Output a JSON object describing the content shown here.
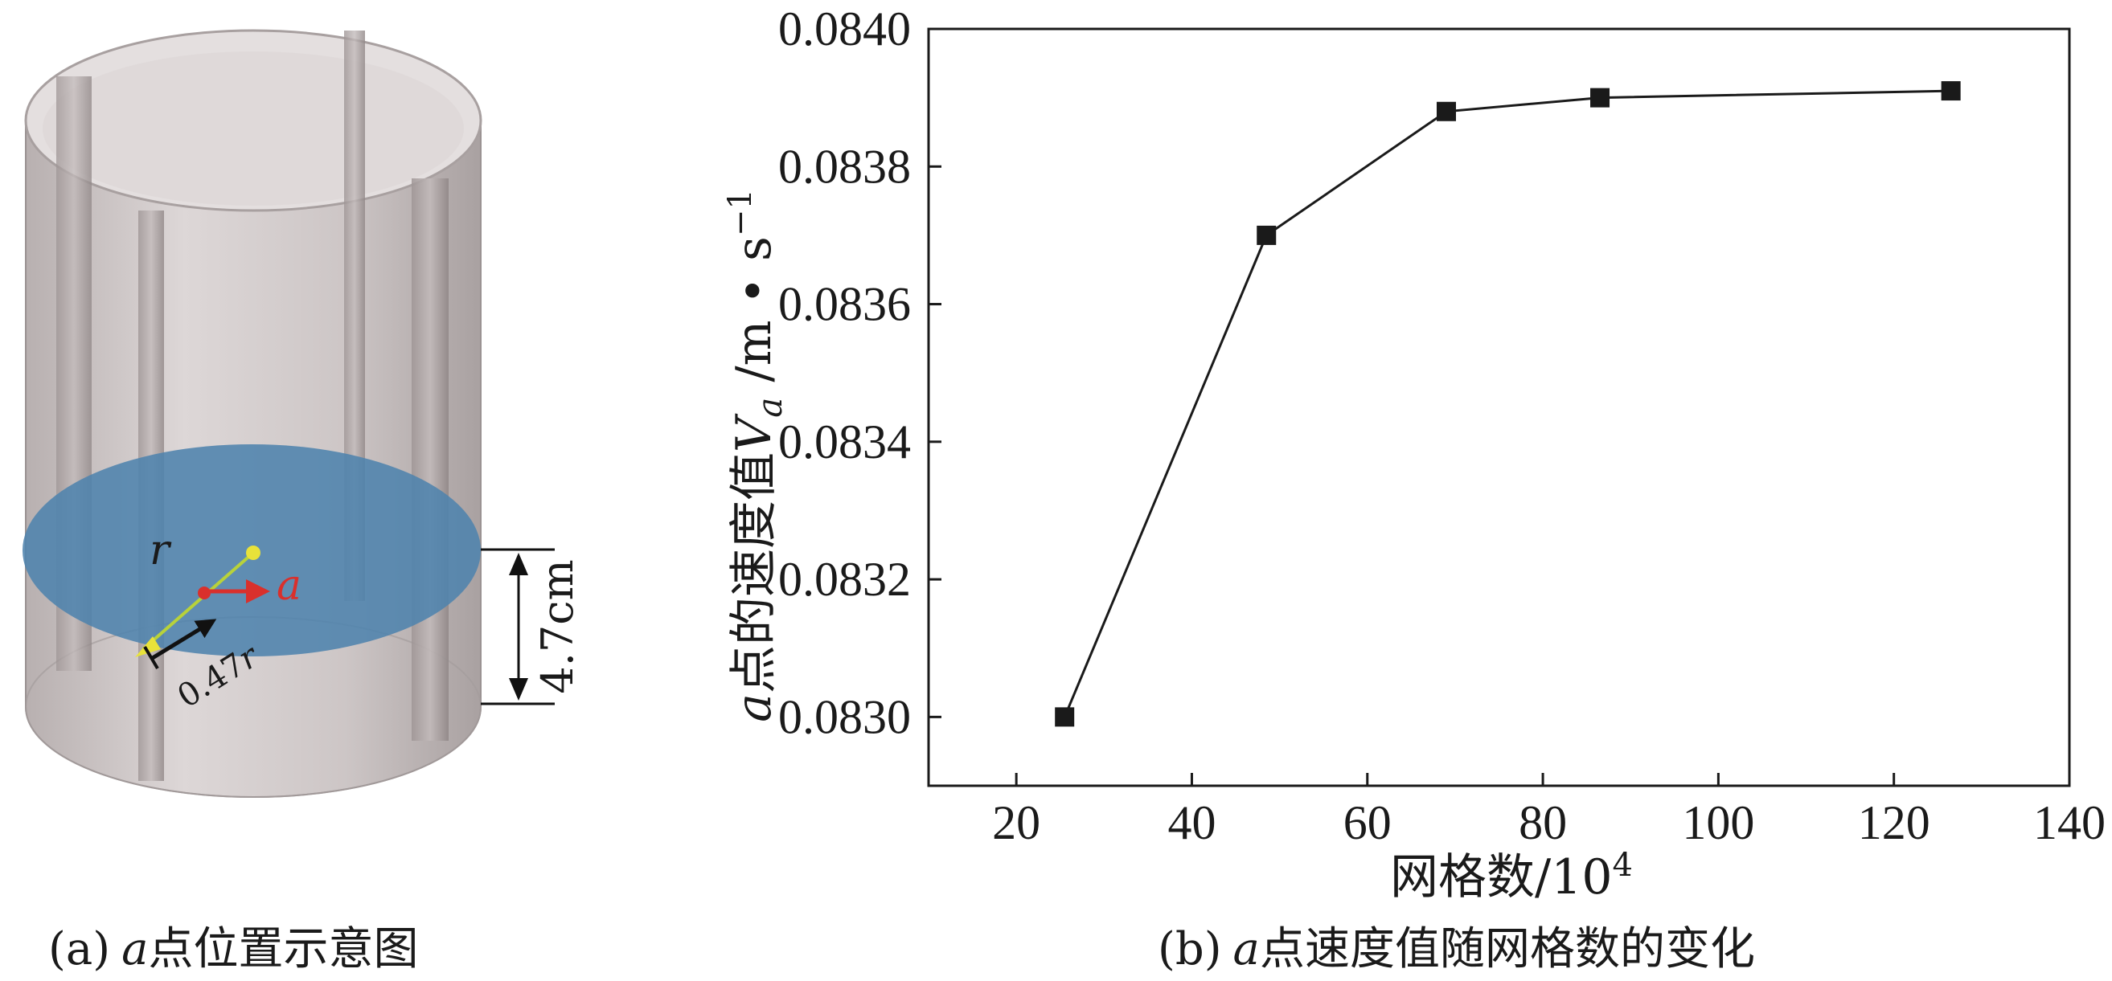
{
  "panel_a": {
    "caption_tag": "(a)",
    "caption_var": "a",
    "caption_rest": "点位置示意图",
    "label_r": "r",
    "label_a": "a",
    "label_047r_num": "0.47",
    "label_047r_var": "r",
    "label_height": "4.7cm",
    "colors": {
      "vessel": "#cfc8c8",
      "slice": "#4f83ad",
      "arrow_red": "#d9302c",
      "point_yellow": "#e8e23a"
    }
  },
  "panel_b": {
    "caption_tag": "(b)",
    "caption_var": "a",
    "caption_rest": "点速度值随网格数的变化"
  },
  "chart_data": {
    "type": "line",
    "x": [
      25.5,
      48.5,
      69,
      86.5,
      126.5
    ],
    "series": [
      {
        "values": [
          0.083,
          0.0837,
          0.08388,
          0.0839,
          0.08391
        ]
      }
    ],
    "xlabel": "网格数/10",
    "xlabel_sup": "4",
    "ylabel_var": "a",
    "ylabel_mid": "点的速度值",
    "ylabel_sym": "V",
    "ylabel_sub": "a",
    "ylabel_unit": " /m • s",
    "ylabel_unit_sup": "−1",
    "xlim": [
      10,
      140
    ],
    "ylim": [
      0.0829,
      0.084
    ],
    "xticks": [
      20,
      40,
      60,
      80,
      100,
      120,
      140
    ],
    "yticks": [
      "0.0830",
      "0.0832",
      "0.0834",
      "0.0836",
      "0.0838",
      "0.0840"
    ],
    "marker": "square",
    "grid": false,
    "line_color": "#1a1a1a"
  }
}
